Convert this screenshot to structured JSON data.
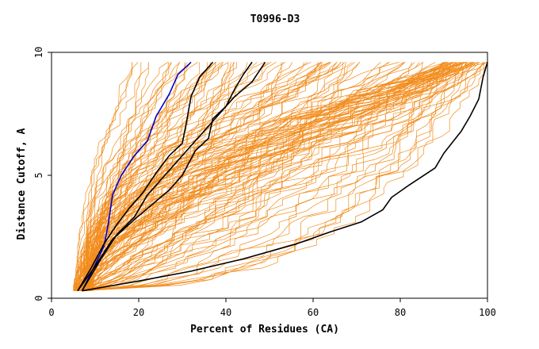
{
  "chart_data": {
    "type": "line",
    "title": "T0996-D3",
    "xlabel": "Percent of Residues (CA)",
    "ylabel": "Distance Cutoff, A",
    "xlim": [
      0,
      100
    ],
    "ylim": [
      0,
      10
    ],
    "x_ticks": [
      "0",
      "20",
      "40",
      "60",
      "80",
      "100"
    ],
    "y_ticks": [
      "0",
      "5",
      "10"
    ],
    "grid": false,
    "colors": {
      "background": "#ffffff",
      "orange": "#f28c1c",
      "black": "#000000",
      "blue": "#0000cc"
    },
    "background_curve_count": 140,
    "series": [
      {
        "color": "#000000",
        "points": [
          [
            7,
            0.3
          ],
          [
            20,
            0.7
          ],
          [
            32,
            1.1
          ],
          [
            44,
            1.6
          ],
          [
            56,
            2.2
          ],
          [
            64,
            2.7
          ],
          [
            71,
            3.1
          ],
          [
            76,
            3.6
          ],
          [
            78,
            4.1
          ],
          [
            82,
            4.6
          ],
          [
            88,
            5.3
          ],
          [
            90,
            5.9
          ],
          [
            94,
            6.8
          ],
          [
            96,
            7.4
          ],
          [
            98,
            8.1
          ],
          [
            99,
            9.0
          ],
          [
            100,
            9.6
          ]
        ]
      },
      {
        "color": "#0000cc",
        "points": [
          [
            7,
            0.3
          ],
          [
            9,
            1.0
          ],
          [
            12,
            2.1
          ],
          [
            13,
            3.0
          ],
          [
            14,
            4.2
          ],
          [
            16,
            5.0
          ],
          [
            19,
            5.8
          ],
          [
            22,
            6.4
          ],
          [
            24,
            7.4
          ],
          [
            27,
            8.3
          ],
          [
            29,
            9.1
          ],
          [
            32,
            9.6
          ]
        ]
      },
      {
        "color": "#000000",
        "points": [
          [
            6,
            0.3
          ],
          [
            9,
            1.2
          ],
          [
            12,
            2.2
          ],
          [
            15,
            3.0
          ],
          [
            18,
            3.7
          ],
          [
            21,
            4.3
          ],
          [
            24,
            5.1
          ],
          [
            27,
            5.8
          ],
          [
            30,
            6.3
          ],
          [
            31,
            7.2
          ],
          [
            32,
            8.2
          ],
          [
            34,
            9.0
          ],
          [
            37,
            9.6
          ]
        ]
      },
      {
        "color": "#000000",
        "points": [
          [
            6,
            0.3
          ],
          [
            10,
            1.3
          ],
          [
            14,
            2.4
          ],
          [
            19,
            3.2
          ],
          [
            23,
            3.8
          ],
          [
            27,
            4.4
          ],
          [
            30,
            5.0
          ],
          [
            33,
            6.0
          ],
          [
            36,
            6.5
          ],
          [
            37,
            7.3
          ],
          [
            40,
            7.8
          ],
          [
            42,
            8.5
          ],
          [
            44,
            9.1
          ],
          [
            46,
            9.6
          ]
        ]
      },
      {
        "color": "#000000",
        "points": [
          [
            7,
            0.3
          ],
          [
            11,
            1.5
          ],
          [
            15,
            2.6
          ],
          [
            19,
            3.3
          ],
          [
            22,
            4.2
          ],
          [
            26,
            5.0
          ],
          [
            30,
            5.8
          ],
          [
            34,
            6.6
          ],
          [
            38,
            7.4
          ],
          [
            42,
            8.2
          ],
          [
            46,
            8.8
          ],
          [
            49,
            9.6
          ]
        ]
      }
    ]
  }
}
